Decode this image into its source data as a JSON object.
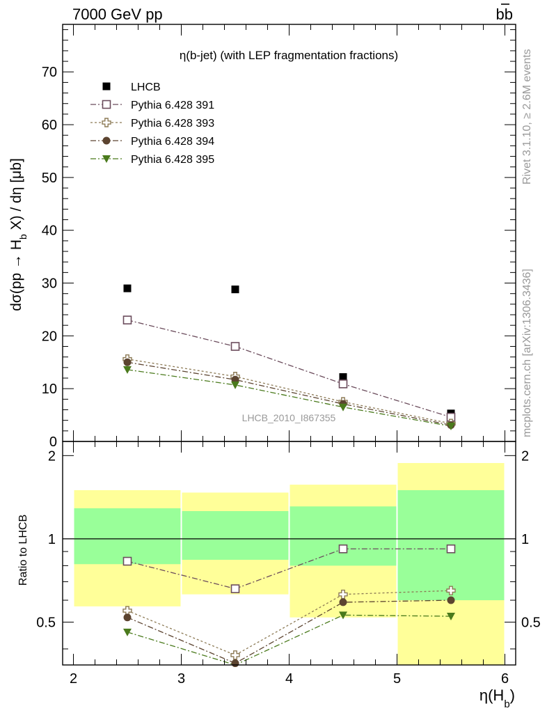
{
  "header": {
    "left": "7000 GeV pp",
    "right_main": "b",
    "right_bar": "b"
  },
  "side_labels": {
    "rivet": "Rivet 3.1.10, ≥ 2.6M events",
    "mcplots": "mcplots.cern.ch [arXiv:1306.3436]"
  },
  "chart_data": [
    {
      "panel": "main",
      "type": "scatter",
      "title": "η(b-jet) (with LEP fragmentation fractions)",
      "ylabel": "dσ(pp → H_b X) / dη [μb]",
      "ylabel_parts": {
        "pre": "dσ(pp → H",
        "sub": "b",
        "post": " X) / dη [μb]"
      },
      "xlabel": "",
      "xlim": [
        1.9,
        6.1
      ],
      "ylim": [
        0,
        79
      ],
      "yticks": [
        0,
        10,
        20,
        30,
        40,
        50,
        60,
        70
      ],
      "watermark": "LHCB_2010_I867355",
      "grid": false,
      "legend_position": "top-left",
      "series": [
        {
          "name": "LHCB",
          "marker": "filled-square",
          "color": "#000000",
          "line": "none",
          "x": [
            2.5,
            3.5,
            4.5,
            5.5
          ],
          "y": [
            29.0,
            28.8,
            12.2,
            5.3
          ]
        },
        {
          "name": "Pythia 6.428 391",
          "marker": "open-square",
          "color": "#6b4c5c",
          "line": "dashdot",
          "x": [
            2.5,
            3.5,
            4.5,
            5.5
          ],
          "y": [
            23.0,
            18.0,
            10.9,
            4.6
          ]
        },
        {
          "name": "Pythia 6.428 393",
          "marker": "open-cross",
          "color": "#8c7a55",
          "line": "dotted",
          "x": [
            2.5,
            3.5,
            4.5,
            5.5
          ],
          "y": [
            15.6,
            12.3,
            7.5,
            3.4
          ]
        },
        {
          "name": "Pythia 6.428 394",
          "marker": "filled-circle",
          "color": "#5c4430",
          "line": "dashdot",
          "x": [
            2.5,
            3.5,
            4.5,
            5.5
          ],
          "y": [
            15.0,
            11.7,
            7.1,
            3.1
          ]
        },
        {
          "name": "Pythia 6.428 395",
          "marker": "filled-triangle-down",
          "color": "#4a7a1c",
          "line": "dashdot",
          "x": [
            2.5,
            3.5,
            4.5,
            5.5
          ],
          "y": [
            13.6,
            10.7,
            6.5,
            2.9
          ]
        }
      ]
    },
    {
      "panel": "ratio",
      "type": "scatter",
      "ylabel": "Ratio to LHCB",
      "xlabel": "η(H_b)",
      "xlabel_parts": {
        "pre": "η(H",
        "sub": "b",
        "post": ")"
      },
      "xlim": [
        1.9,
        6.1
      ],
      "ylim": [
        0.35,
        2.25
      ],
      "xticks": [
        2,
        3,
        4,
        5,
        6
      ],
      "yticks": [
        0.5,
        1,
        2
      ],
      "reference_line": 1,
      "bands": [
        {
          "x0": 2,
          "x1": 3,
          "yellow": [
            0.57,
            1.5
          ],
          "green": [
            0.81,
            1.29
          ]
        },
        {
          "x0": 3,
          "x1": 4,
          "yellow": [
            0.63,
            1.47
          ],
          "green": [
            0.84,
            1.26
          ]
        },
        {
          "x0": 4,
          "x1": 5,
          "yellow": [
            0.52,
            1.57
          ],
          "green": [
            0.8,
            1.31
          ]
        },
        {
          "x0": 5,
          "x1": 6,
          "yellow": [
            0.33,
            1.88
          ],
          "green": [
            0.6,
            1.5
          ]
        }
      ],
      "band_colors": {
        "yellow": "#ffff99",
        "green": "#99ff99"
      },
      "series": [
        {
          "name": "Pythia 6.428 391",
          "marker": "open-square",
          "color": "#6b4c5c",
          "line": "dashdot",
          "x": [
            2.5,
            3.5,
            4.5,
            5.5
          ],
          "y": [
            0.83,
            0.66,
            0.92,
            0.92
          ]
        },
        {
          "name": "Pythia 6.428 393",
          "marker": "open-cross",
          "color": "#8c7a55",
          "line": "dotted",
          "x": [
            2.5,
            3.5,
            4.5,
            5.5
          ],
          "y": [
            0.55,
            0.38,
            0.63,
            0.65
          ]
        },
        {
          "name": "Pythia 6.428 394",
          "marker": "filled-circle",
          "color": "#5c4430",
          "line": "dashdot",
          "x": [
            2.5,
            3.5,
            4.5,
            5.5
          ],
          "y": [
            0.52,
            0.355,
            0.59,
            0.6
          ]
        },
        {
          "name": "Pythia 6.428 395",
          "marker": "filled-triangle-down",
          "color": "#4a7a1c",
          "line": "dashdot",
          "x": [
            2.5,
            3.5,
            4.5,
            5.5
          ],
          "y": [
            0.46,
            0.33,
            0.53,
            0.525
          ]
        }
      ]
    }
  ]
}
